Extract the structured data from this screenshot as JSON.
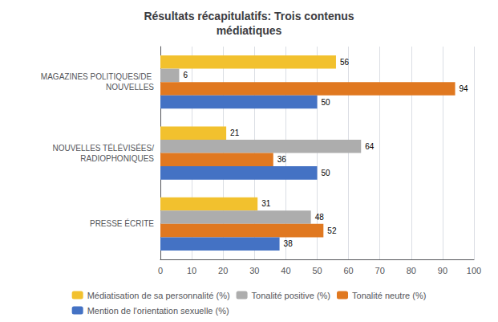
{
  "chart_data": {
    "type": "bar",
    "orientation": "horizontal",
    "title": "Résultats récapitulatifs: Trois contenus\nmédiatiques",
    "categories": [
      "MAGAZINES POLITIQUES/DE NOUVELLES",
      "NOUVELLES TÉLÉVISÉES/RADIOPHONIQUES",
      "PRESSE ÉCRITE"
    ],
    "series": [
      {
        "name": "Médiatisation de sa personnalité (%)",
        "color": "#F2C12E",
        "values": [
          56,
          21,
          31
        ]
      },
      {
        "name": "Tonalité positive (%)",
        "color": "#ADADAD",
        "values": [
          6,
          64,
          48
        ]
      },
      {
        "name": "Tonalité neutre (%)",
        "color": "#E07820",
        "values": [
          94,
          36,
          52
        ]
      },
      {
        "name": "Mention de l'orientation sexuelle (%)",
        "color": "#4472C4",
        "values": [
          50,
          50,
          38
        ]
      }
    ],
    "xlim": [
      0,
      100
    ],
    "xticks": [
      0,
      10,
      20,
      30,
      40,
      50,
      60,
      70,
      80,
      90,
      100
    ],
    "grid": true,
    "data_labels": true,
    "legend": "bottom"
  }
}
